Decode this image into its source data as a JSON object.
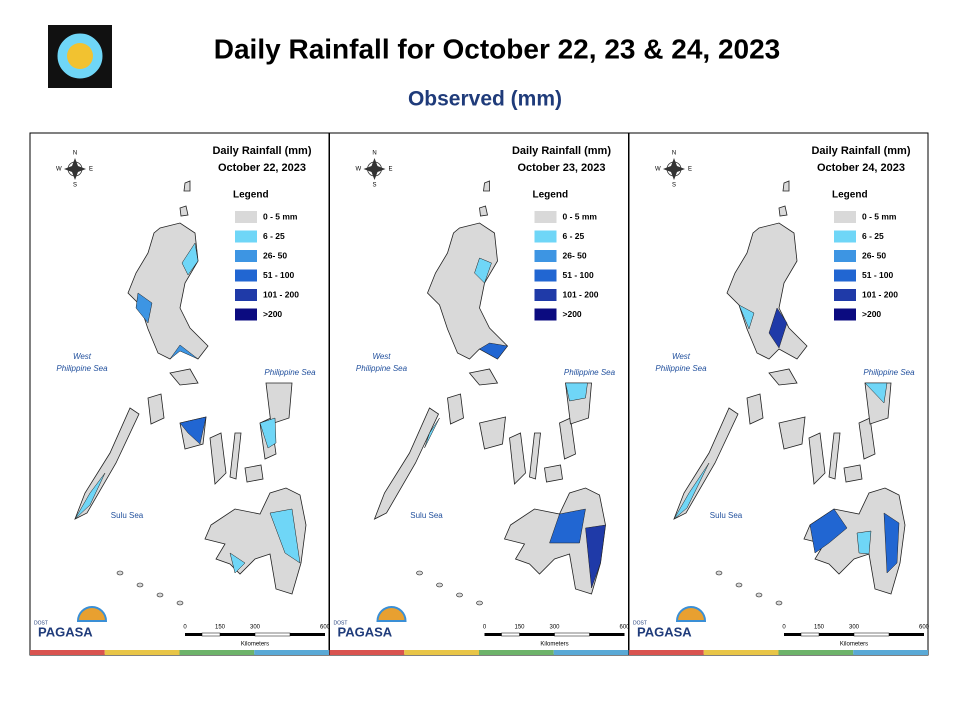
{
  "header": {
    "title": "Daily Rainfall for October 22, 23 & 24, 2023",
    "subtitle": "Observed (mm)"
  },
  "maps": [
    {
      "title": "Daily Rainfall (mm)",
      "date": "October 22, 2023"
    },
    {
      "title": "Daily Rainfall (mm)",
      "date": "October 23, 2023"
    },
    {
      "title": "Daily Rainfall (mm)",
      "date": "October 24, 2023"
    }
  ],
  "legend": {
    "title": "Legend",
    "items": [
      {
        "label": "0 - 5 mm",
        "color": "#d9d9d9"
      },
      {
        "label": "6 - 25",
        "color": "#6fd6f7"
      },
      {
        "label": "26- 50",
        "color": "#3d95e3"
      },
      {
        "label": "51 - 100",
        "color": "#2166d2"
      },
      {
        "label": "101 - 200",
        "color": "#1f3aa8"
      },
      {
        "label": ">200",
        "color": "#0b0b80"
      }
    ]
  },
  "compass": {
    "n": "N",
    "s": "S",
    "e": "E",
    "w": "W"
  },
  "seas": {
    "west": [
      "West",
      "Philippine Sea"
    ],
    "east": "Philippine Sea",
    "sulu": "Sulu Sea"
  },
  "scale": {
    "ticks": [
      "0",
      "150",
      "300",
      "600"
    ],
    "unit": "Kilometers"
  },
  "logo": {
    "small": "DOST",
    "name": "PAGASA"
  }
}
